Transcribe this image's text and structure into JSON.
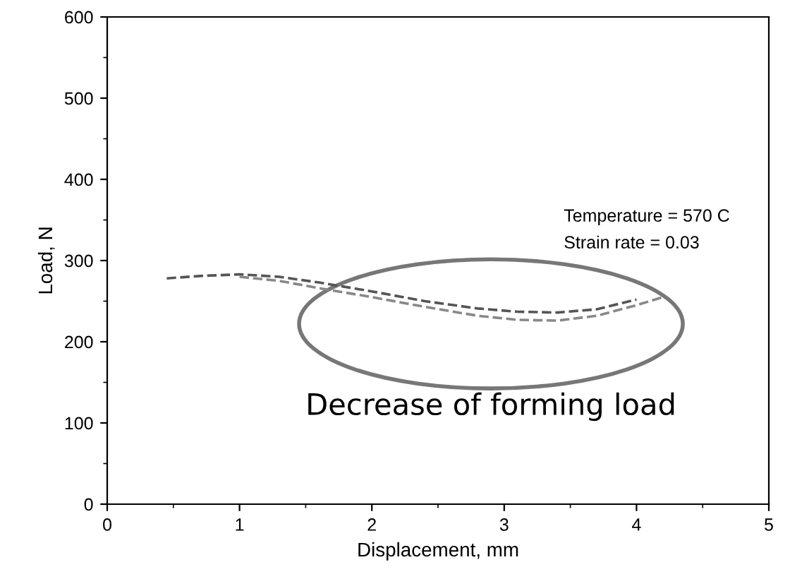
{
  "chart_data": {
    "type": "line",
    "xlabel": "Displacement, mm",
    "ylabel": "Load, N",
    "xlim": [
      0,
      5
    ],
    "ylim": [
      0,
      600
    ],
    "xticks": [
      0,
      1,
      2,
      3,
      4,
      5
    ],
    "yticks": [
      0,
      100,
      200,
      300,
      400,
      500,
      600
    ],
    "line_style": "dashed",
    "marker": "none",
    "grid": false,
    "legend": false,
    "series": [
      {
        "color": "#555555",
        "x": [
          0.45,
          0.7,
          1.0,
          1.3,
          1.6,
          2.0,
          2.4,
          2.8,
          3.1,
          3.4,
          3.7,
          4.0
        ],
        "values": [
          278,
          281,
          283,
          280,
          273,
          262,
          250,
          241,
          237,
          236,
          240,
          252
        ]
      },
      {
        "color": "#888888",
        "x": [
          1.0,
          1.3,
          1.6,
          2.0,
          2.4,
          2.8,
          3.1,
          3.4,
          3.7,
          4.0,
          4.2
        ],
        "values": [
          280,
          275,
          266,
          255,
          243,
          232,
          227,
          226,
          232,
          245,
          255
        ]
      }
    ],
    "annotations": [
      "Temperature = 570 C",
      "Strain rate = 0.03",
      {
        "text": "Decrease of forming load",
        "x": 2.9,
        "y": 222
      }
    ]
  }
}
